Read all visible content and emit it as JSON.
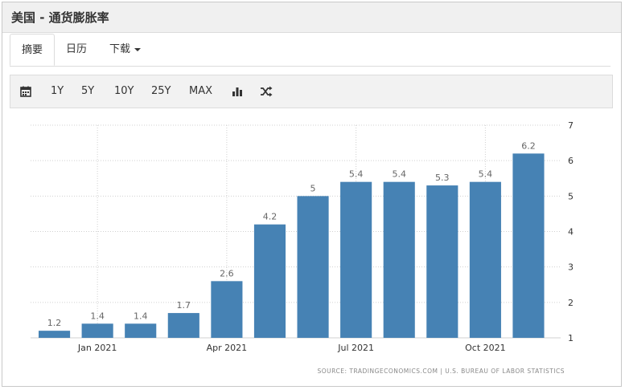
{
  "header": {
    "title": "美国 - 通货膨胀率"
  },
  "tabs": [
    {
      "label": "摘要"
    },
    {
      "label": "日历"
    },
    {
      "label": "下载"
    }
  ],
  "toolbar": {
    "ranges": [
      "1Y",
      "5Y",
      "10Y",
      "25Y",
      "MAX"
    ],
    "icons": [
      "calendar-icon",
      "bar-chart-icon",
      "shuffle-icon"
    ]
  },
  "chart_data": {
    "type": "bar",
    "title": "",
    "xlabel": "",
    "ylabel": "",
    "ylim": [
      1,
      7
    ],
    "yticks": [
      1,
      2,
      3,
      4,
      5,
      6,
      7
    ],
    "x_tick_labels": [
      "Jan 2021",
      "Apr 2021",
      "Jul 2021",
      "Oct 2021"
    ],
    "categories": [
      "Dec 2020",
      "Jan 2021",
      "Feb 2021",
      "Mar 2021",
      "Apr 2021",
      "May 2021",
      "Jun 2021",
      "Jul 2021",
      "Aug 2021",
      "Sep 2021",
      "Oct 2021",
      "Nov 2021"
    ],
    "values": [
      1.2,
      1.4,
      1.4,
      1.7,
      2.6,
      4.2,
      5,
      5.4,
      5.4,
      5.3,
      5.4,
      6.2
    ],
    "value_labels": [
      "1.2",
      "1.4",
      "1.4",
      "1.7",
      "2.6",
      "4.2",
      "5",
      "5.4",
      "5.4",
      "5.3",
      "5.4",
      "6.2"
    ],
    "bar_color": "#4682b4",
    "grid": true,
    "source": "SOURCE: TRADINGECONOMICS.COM  |  U.S. BUREAU OF LABOR STATISTICS"
  }
}
